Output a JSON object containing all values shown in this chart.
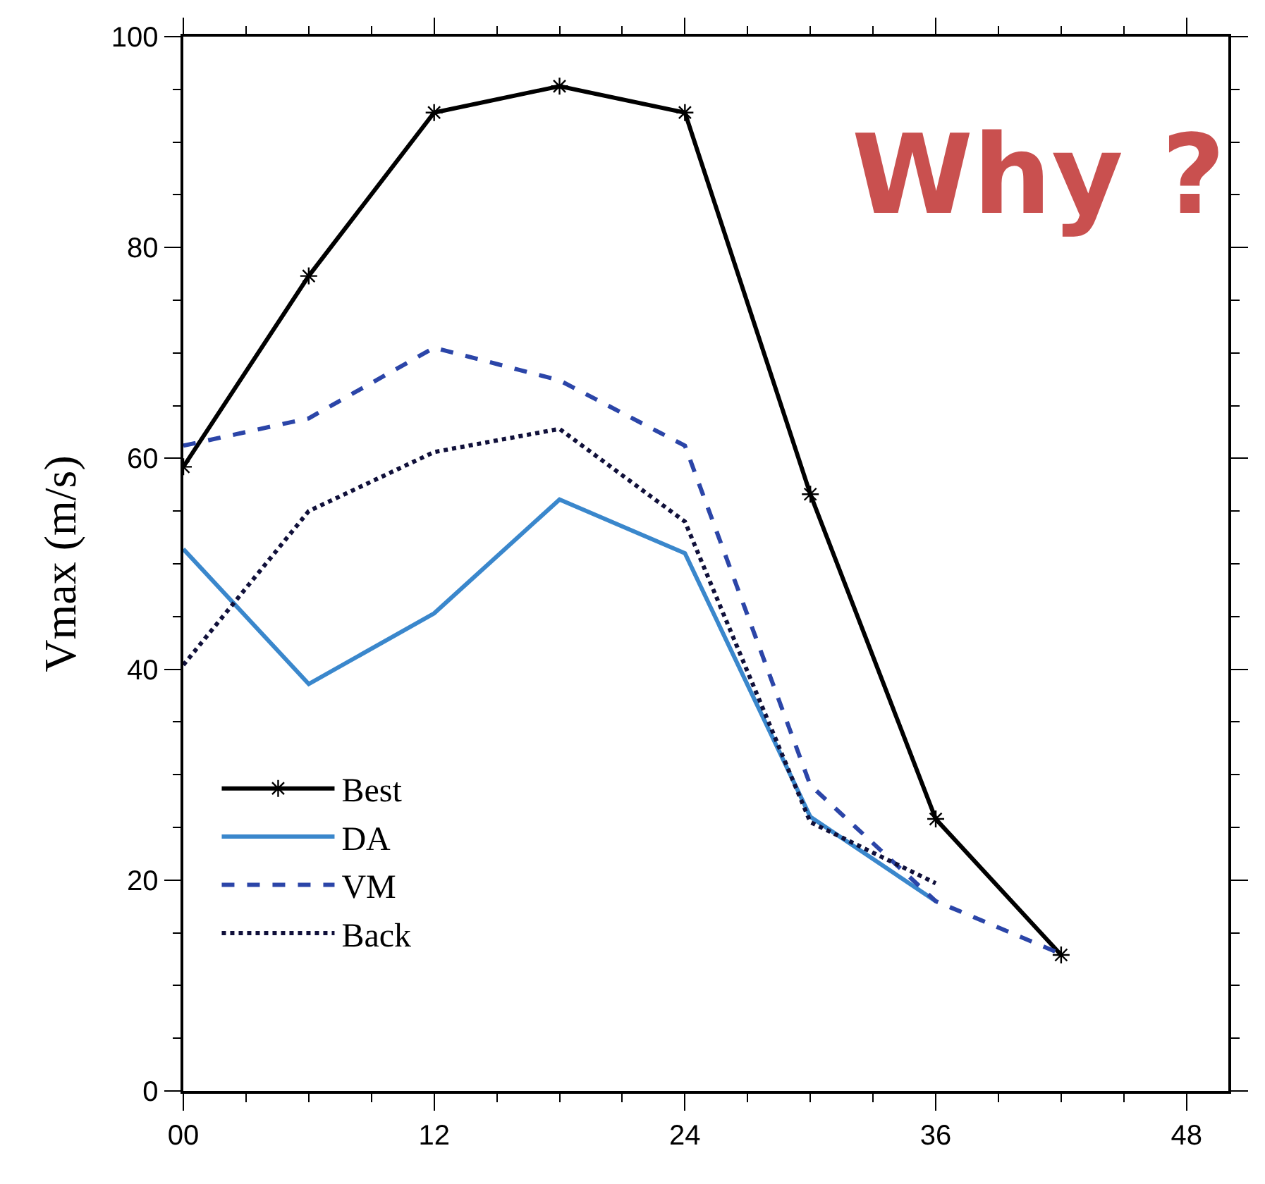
{
  "chart_data": {
    "type": "line",
    "ylabel": "Vmax (m/s)",
    "x": [
      0,
      6,
      12,
      18,
      24,
      30,
      36,
      42
    ],
    "xlim": [
      0,
      50
    ],
    "xticks": [
      {
        "value": 0,
        "label": "00"
      },
      12,
      24,
      36,
      48
    ],
    "ylim": [
      0,
      100
    ],
    "yticks": [
      0,
      20,
      40,
      60,
      80,
      100
    ],
    "legend": "bottom left",
    "annotations": [
      "Why ?"
    ],
    "series": [
      {
        "name": "Best",
        "color": "#000000",
        "line_style": "solid",
        "marker": "cross",
        "values": [
          59.2,
          77.3,
          92.8,
          95.3,
          92.8,
          56.6,
          25.8,
          12.9
        ]
      },
      {
        "name": "DA",
        "color": "#3a87cc",
        "line_style": "solid",
        "marker": "none",
        "values": [
          51.4,
          38.6,
          45.3,
          56.1,
          51.0,
          26.0,
          18.0,
          null
        ]
      },
      {
        "name": "VM",
        "color": "#2b45a8",
        "line_style": "dashed",
        "marker": "none",
        "values": [
          61.2,
          63.8,
          70.5,
          67.4,
          61.2,
          29.0,
          18.0,
          13.0
        ]
      },
      {
        "name": "Back",
        "color": "#10103a",
        "line_style": "dotted",
        "marker": "none",
        "values": [
          40.4,
          55.0,
          60.6,
          62.8,
          54.0,
          25.5,
          19.7,
          null
        ]
      }
    ]
  }
}
